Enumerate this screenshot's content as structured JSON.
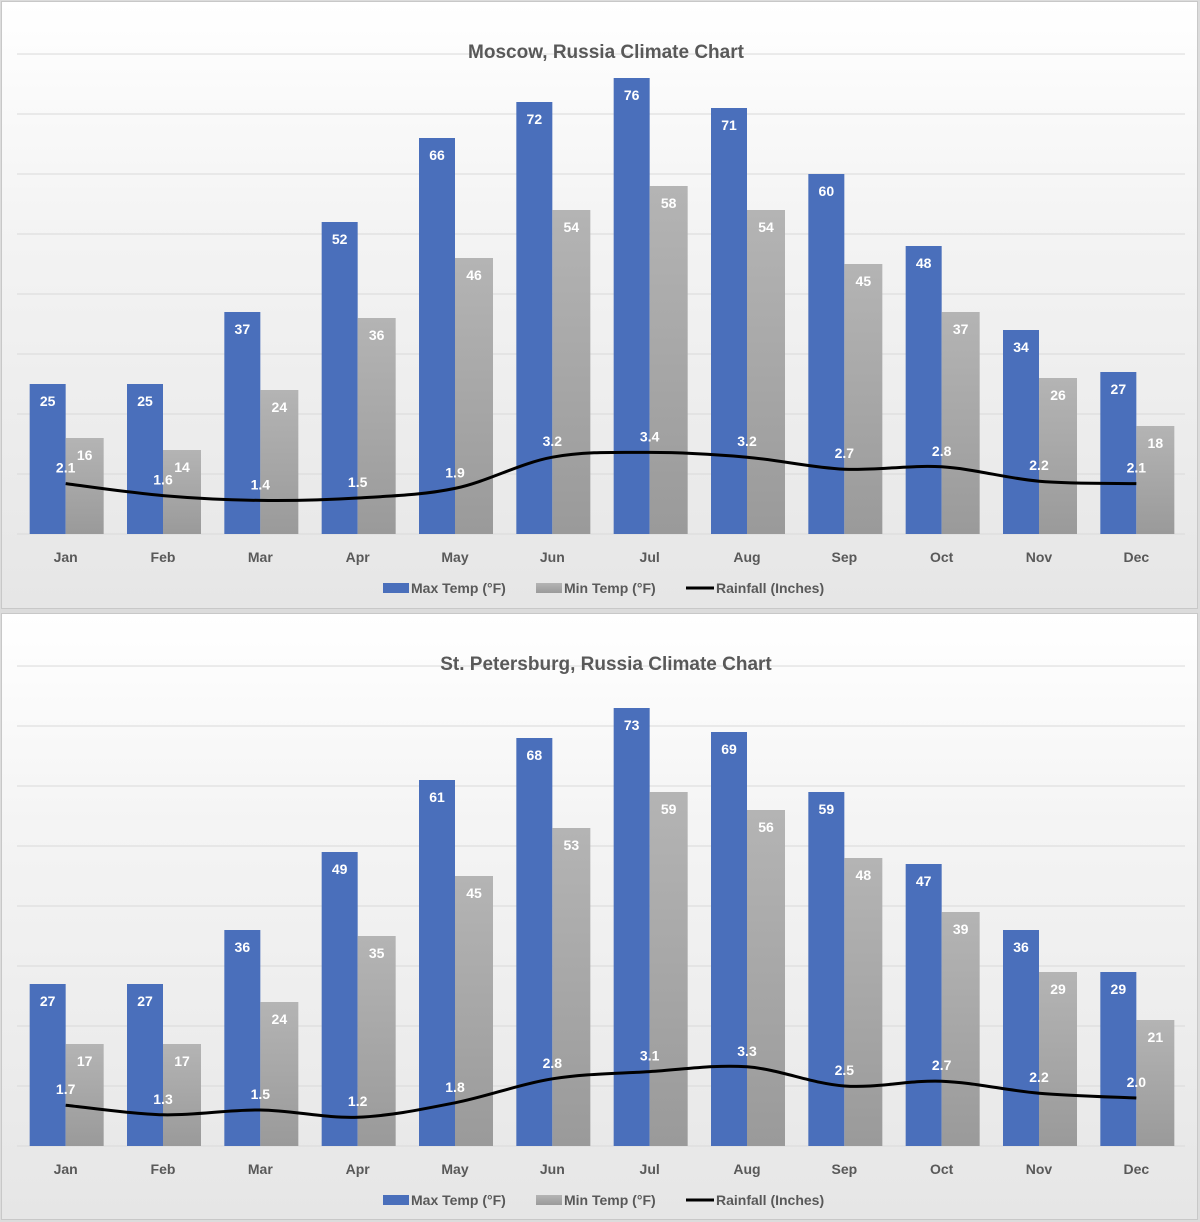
{
  "chart_data": [
    {
      "type": "bar",
      "title": "Moscow, Russia Climate Chart",
      "xlabel": "",
      "ylabel": "",
      "categories": [
        "Jan",
        "Feb",
        "Mar",
        "Apr",
        "May",
        "Jun",
        "Jul",
        "Aug",
        "Sep",
        "Oct",
        "Nov",
        "Dec"
      ],
      "series": [
        {
          "name": "Max Temp (°F)",
          "type": "bar",
          "color": "#4a6fbb",
          "values": [
            25,
            25,
            37,
            52,
            66,
            72,
            76,
            71,
            60,
            48,
            34,
            27
          ]
        },
        {
          "name": "Min Temp (°F)",
          "type": "bar",
          "color": "#a8a8a8",
          "values": [
            16,
            14,
            24,
            36,
            46,
            54,
            58,
            54,
            45,
            37,
            26,
            18
          ]
        },
        {
          "name": "Rainfall (Inches)",
          "type": "line",
          "color": "#000000",
          "values": [
            2.1,
            1.6,
            1.4,
            1.5,
            1.9,
            3.2,
            3.4,
            3.2,
            2.7,
            2.8,
            2.2,
            2.1
          ],
          "labels": [
            "2.1",
            "1.6",
            "1.4",
            "1.5",
            "1.9",
            "3.2",
            "3.4",
            "3.2",
            "2.7",
            "2.8",
            "2.2",
            "2.1"
          ]
        }
      ],
      "ylim": [
        0,
        80
      ],
      "grid": true,
      "legend_position": "bottom"
    },
    {
      "type": "bar",
      "title": "St. Petersburg, Russia Climate Chart",
      "xlabel": "",
      "ylabel": "",
      "categories": [
        "Jan",
        "Feb",
        "Mar",
        "Apr",
        "May",
        "Jun",
        "Jul",
        "Aug",
        "Sep",
        "Oct",
        "Nov",
        "Dec"
      ],
      "series": [
        {
          "name": "Max Temp (°F)",
          "type": "bar",
          "color": "#4a6fbb",
          "values": [
            27,
            27,
            36,
            49,
            61,
            68,
            73,
            69,
            59,
            47,
            36,
            29
          ]
        },
        {
          "name": "Min Temp (°F)",
          "type": "bar",
          "color": "#a8a8a8",
          "values": [
            17,
            17,
            24,
            35,
            45,
            53,
            59,
            56,
            48,
            39,
            29,
            21
          ]
        },
        {
          "name": "Rainfall (Inches)",
          "type": "line",
          "color": "#000000",
          "values": [
            1.7,
            1.3,
            1.5,
            1.2,
            1.8,
            2.8,
            3.1,
            3.3,
            2.5,
            2.7,
            2.2,
            2.0
          ],
          "labels": [
            "1.7",
            "1.3",
            "1.5",
            "1.2",
            "1.8",
            "2.8",
            "3.1",
            "3.3",
            "2.5",
            "2.7",
            "2.2",
            "2.0"
          ]
        }
      ],
      "ylim": [
        0,
        80
      ],
      "grid": true,
      "legend_position": "bottom"
    }
  ]
}
